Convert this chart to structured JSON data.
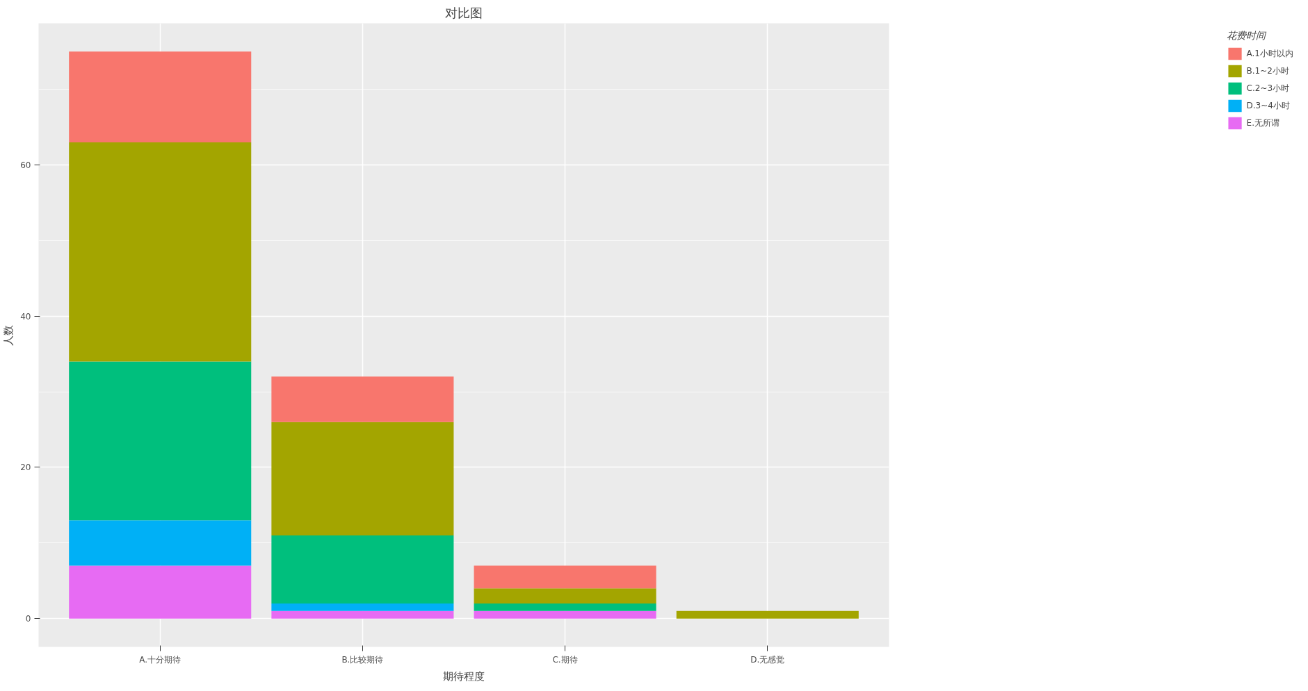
{
  "chart_data": {
    "type": "bar",
    "stacked": true,
    "title": "对比图",
    "xlabel": "期待程度",
    "ylabel": "人数",
    "legend_title": "花费时间",
    "categories": [
      "A.十分期待",
      "B.比较期待",
      "C.期待",
      "D.无感觉"
    ],
    "series": [
      {
        "name": "E.无所谓",
        "color": "#e76bf3",
        "values": [
          7,
          1,
          1,
          0
        ]
      },
      {
        "name": "D.3~4小时",
        "color": "#00b0f6",
        "values": [
          6,
          1,
          0,
          0
        ]
      },
      {
        "name": "C.2~3小时",
        "color": "#00bf7d",
        "values": [
          21,
          9,
          1,
          0
        ]
      },
      {
        "name": "B.1~2小时",
        "color": "#a3a500",
        "values": [
          29,
          15,
          2,
          1
        ]
      },
      {
        "name": "A.1小时以内",
        "color": "#f8766d",
        "values": [
          12,
          6,
          3,
          0
        ]
      }
    ],
    "ylim": [
      -3.75,
      78.75
    ],
    "yticks": [
      0,
      20,
      40,
      60
    ],
    "grid": true,
    "legend": "right"
  }
}
